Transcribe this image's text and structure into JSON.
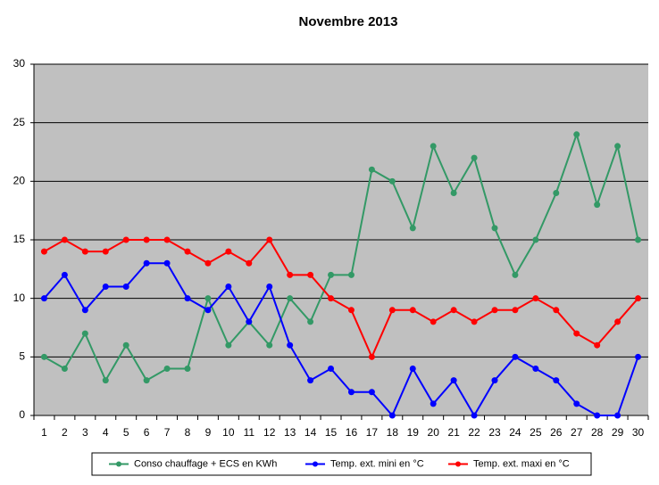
{
  "chart_data": {
    "type": "line",
    "title": "Novembre 2013",
    "categories": [
      "1",
      "2",
      "3",
      "4",
      "5",
      "6",
      "7",
      "8",
      "9",
      "10",
      "11",
      "12",
      "13",
      "14",
      "15",
      "16",
      "17",
      "18",
      "19",
      "20",
      "21",
      "22",
      "23",
      "24",
      "25",
      "26",
      "27",
      "28",
      "29",
      "30"
    ],
    "series": [
      {
        "name": "Conso chauffage + ECS en KWh",
        "color": "#339966",
        "values": [
          5,
          4,
          7,
          3,
          6,
          3,
          4,
          4,
          10,
          6,
          8,
          6,
          10,
          8,
          12,
          12,
          21,
          20,
          16,
          23,
          19,
          22,
          16,
          12,
          15,
          19,
          24,
          18,
          23,
          15
        ]
      },
      {
        "name": "Temp. ext. mini en °C",
        "color": "#0000ff",
        "values": [
          10,
          12,
          9,
          11,
          11,
          13,
          13,
          10,
          9,
          11,
          8,
          11,
          6,
          3,
          4,
          2,
          2,
          0,
          4,
          1,
          3,
          0,
          3,
          5,
          4,
          3,
          1,
          0,
          0,
          5
        ]
      },
      {
        "name": "Temp. ext. maxi en °C",
        "color": "#ff0000",
        "values": [
          14,
          15,
          14,
          14,
          15,
          15,
          15,
          14,
          13,
          14,
          13,
          15,
          12,
          12,
          10,
          9,
          5,
          9,
          9,
          8,
          9,
          8,
          9,
          9,
          10,
          9,
          7,
          6,
          8,
          10
        ]
      }
    ],
    "ylim": [
      0,
      30
    ],
    "yticks": [
      0,
      5,
      10,
      15,
      20,
      25,
      30
    ],
    "grid": true,
    "legend": "bottom"
  }
}
